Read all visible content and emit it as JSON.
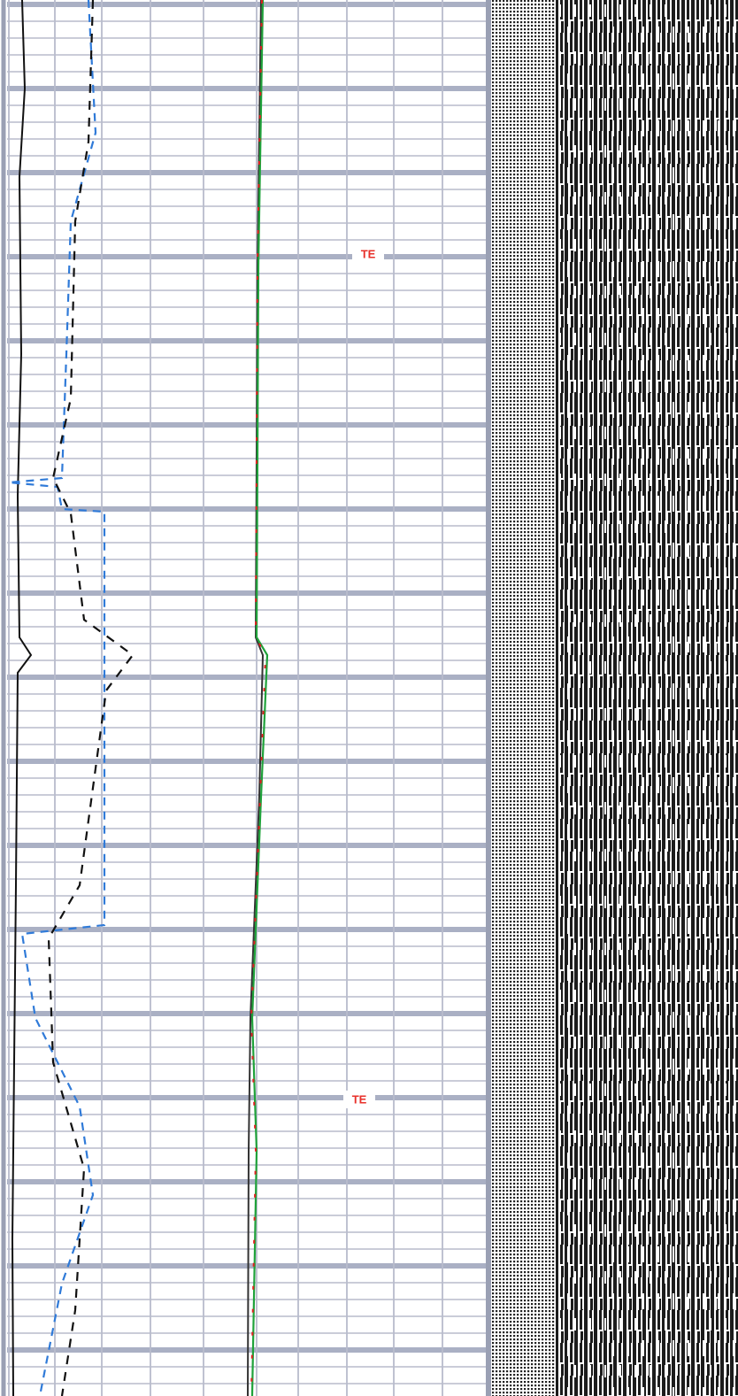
{
  "annotations": [
    "TE",
    "TE"
  ]
}
